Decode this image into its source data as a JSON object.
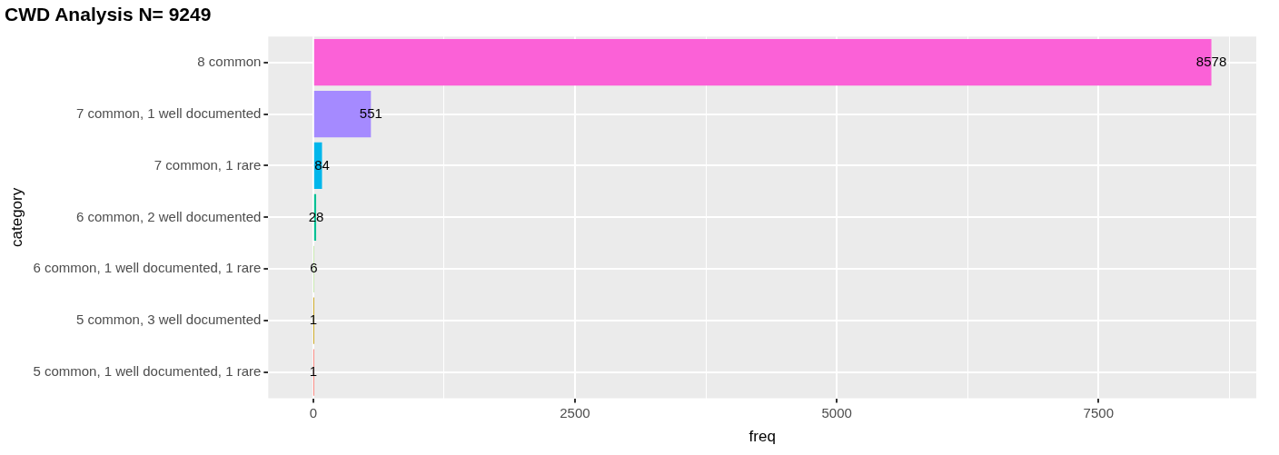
{
  "chart_data": {
    "type": "bar",
    "orientation": "horizontal",
    "title": "CWD Analysis N= 9249",
    "xlabel": "freq",
    "ylabel": "category",
    "categories": [
      "8 common",
      "7 common, 1 well documented",
      "7 common, 1 rare",
      "6 common, 2 well documented",
      "6 common, 1 well documented, 1 rare",
      "5 common, 3 well documented",
      "5 common, 1 well documented, 1 rare"
    ],
    "values": [
      8578,
      551,
      84,
      28,
      6,
      1,
      1
    ],
    "colors": [
      "#fb61d7",
      "#a58aff",
      "#00b6eb",
      "#00c094",
      "#53b400",
      "#c49a00",
      "#f8766d"
    ],
    "xlim": [
      -429,
      9007
    ],
    "xticks": [
      0,
      {
        "value": 1250,
        "label": null
      },
      2500,
      {
        "value": 3750,
        "label": null
      },
      5000,
      {
        "value": 6250,
        "label": null
      },
      7500,
      {
        "value": 8750,
        "label": null
      }
    ],
    "grid": true,
    "data_labels": true,
    "legend": false
  }
}
